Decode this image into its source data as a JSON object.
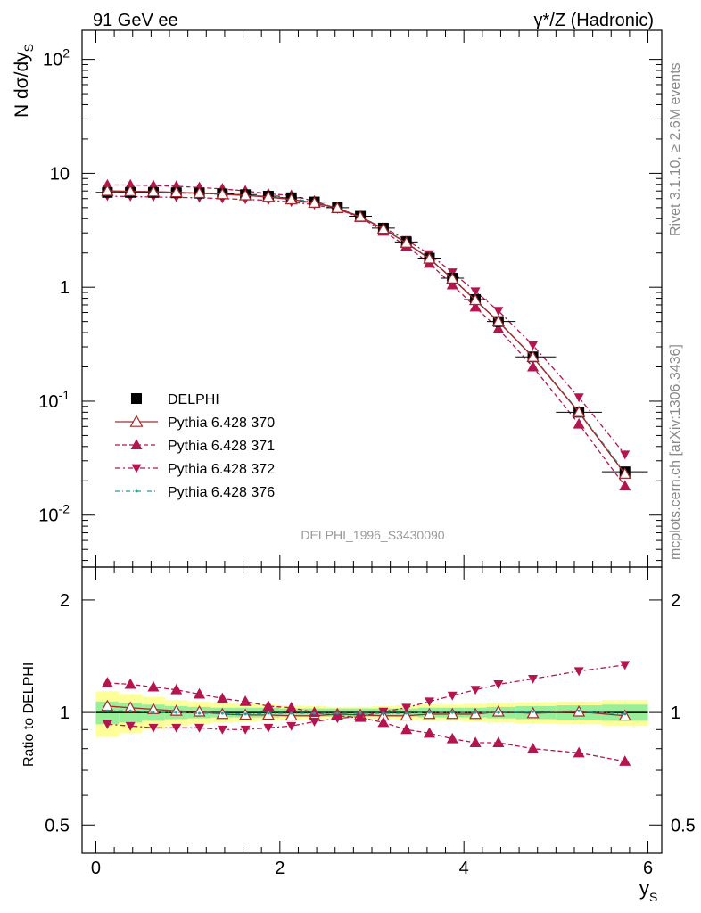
{
  "header": {
    "left_title": "91 GeV ee",
    "right_title": "γ*/Z (Hadronic)"
  },
  "side_labels": {
    "rivet": "Rivet 3.1.10, ≥ 2.6M events",
    "mcplots": "mcplots.cern.ch [arXiv:1306.3436]"
  },
  "watermark": "DELPHI_1996_S3430090",
  "axes": {
    "ylabel_top_main": "N dσ/dy",
    "ylabel_top_sub": "S",
    "ylabel_bottom": "Ratio to DELPHI",
    "xlabel_main": "y",
    "xlabel_sub": "S",
    "x_ticks": [
      "0",
      "2",
      "4",
      "6"
    ],
    "y_top_ticks": [
      {
        "base": "10",
        "exp": "-2"
      },
      {
        "base": "10",
        "exp": "-1"
      },
      {
        "base": "1",
        "exp": ""
      },
      {
        "base": "10",
        "exp": ""
      },
      {
        "base": "10",
        "exp": "2"
      }
    ],
    "y_bottom_ticks": [
      "0.5",
      "1",
      "2"
    ]
  },
  "legend": {
    "entries": [
      "DELPHI",
      "Pythia 6.428 370",
      "Pythia 6.428 371",
      "Pythia 6.428 372",
      "Pythia 6.428 376"
    ]
  },
  "colors": {
    "data": "#000000",
    "p370": "#a52a2a",
    "p371": "#b5154f",
    "p372": "#b5154f",
    "p376": "#1aa0a0",
    "band_inner": "#99ee99",
    "band_outer": "#ffff99"
  },
  "chart_data": {
    "type": "line",
    "x": [
      0.125,
      0.375,
      0.625,
      0.875,
      1.125,
      1.375,
      1.625,
      1.875,
      2.125,
      2.375,
      2.625,
      2.875,
      3.125,
      3.375,
      3.625,
      3.875,
      4.125,
      4.375,
      4.75,
      5.25,
      5.75
    ],
    "xlim": [
      -0.15,
      6.15
    ],
    "top": {
      "ylim": [
        0.0035,
        180
      ],
      "yscale": "log",
      "series": [
        {
          "name": "DELPHI",
          "values": [
            6.8,
            6.8,
            6.8,
            6.75,
            6.7,
            6.6,
            6.5,
            6.3,
            6.1,
            5.6,
            5.0,
            4.2,
            3.3,
            2.5,
            1.8,
            1.2,
            0.78,
            0.5,
            0.245,
            0.08,
            0.024
          ]
        },
        {
          "name": "Pythia 6.428 370",
          "values": [
            7.0,
            6.95,
            6.9,
            6.8,
            6.7,
            6.55,
            6.4,
            6.2,
            5.9,
            5.5,
            4.95,
            4.15,
            3.25,
            2.45,
            1.78,
            1.19,
            0.77,
            0.5,
            0.244,
            0.08,
            0.023
          ]
        },
        {
          "name": "Pythia 6.428 371",
          "values": [
            7.9,
            7.9,
            7.8,
            7.7,
            7.5,
            7.3,
            7.0,
            6.6,
            6.4,
            5.7,
            4.9,
            4.1,
            3.1,
            2.3,
            1.62,
            1.05,
            0.67,
            0.43,
            0.2,
            0.063,
            0.018
          ]
        },
        {
          "name": "Pythia 6.428 372",
          "values": [
            6.3,
            6.25,
            6.2,
            6.15,
            6.1,
            6.0,
            5.9,
            5.8,
            5.6,
            5.3,
            4.85,
            4.1,
            3.35,
            2.6,
            1.95,
            1.35,
            0.92,
            0.62,
            0.31,
            0.108,
            0.034
          ]
        },
        {
          "name": "Pythia 6.428 376",
          "values": [
            6.9,
            6.85,
            6.8,
            6.7,
            6.65,
            6.55,
            6.45,
            6.25,
            6.05,
            5.55,
            4.98,
            4.18,
            3.28,
            2.48,
            1.79,
            1.2,
            0.78,
            0.5,
            0.246,
            0.081,
            0.0238
          ]
        }
      ]
    },
    "ratio": {
      "ylim": [
        0.42,
        2.45
      ],
      "yscale": "log",
      "band_inner_halfwidth": [
        0.07,
        0.06,
        0.05,
        0.04,
        0.035,
        0.03,
        0.03,
        0.03,
        0.025,
        0.025,
        0.025,
        0.025,
        0.025,
        0.025,
        0.03,
        0.03,
        0.03,
        0.035,
        0.04,
        0.045,
        0.05
      ],
      "band_outer_halfwidth": [
        0.14,
        0.12,
        0.1,
        0.08,
        0.07,
        0.06,
        0.055,
        0.05,
        0.045,
        0.04,
        0.035,
        0.035,
        0.04,
        0.045,
        0.05,
        0.05,
        0.055,
        0.06,
        0.065,
        0.07,
        0.08
      ],
      "series": [
        {
          "name": "Pythia 6.428 370",
          "values": [
            1.04,
            1.03,
            1.02,
            1.01,
            1.005,
            0.99,
            0.985,
            0.985,
            0.98,
            0.98,
            0.99,
            0.985,
            0.98,
            0.98,
            0.99,
            0.99,
            0.99,
            1.005,
            0.995,
            1.005,
            0.98
          ]
        },
        {
          "name": "Pythia 6.428 371",
          "values": [
            1.2,
            1.19,
            1.17,
            1.15,
            1.12,
            1.09,
            1.07,
            1.04,
            1.03,
            1.0,
            0.98,
            0.97,
            0.94,
            0.9,
            0.88,
            0.85,
            0.83,
            0.83,
            0.8,
            0.78,
            0.74
          ]
        },
        {
          "name": "Pythia 6.428 372",
          "values": [
            0.93,
            0.92,
            0.91,
            0.91,
            0.91,
            0.9,
            0.9,
            0.91,
            0.92,
            0.945,
            0.965,
            0.975,
            1.005,
            1.03,
            1.07,
            1.11,
            1.15,
            1.19,
            1.23,
            1.29,
            1.34
          ]
        },
        {
          "name": "Pythia 6.428 376",
          "values": [
            1.01,
            1.01,
            1.0,
            1.0,
            0.995,
            0.995,
            0.99,
            0.995,
            0.995,
            0.995,
            0.995,
            0.995,
            0.995,
            0.995,
            1.0,
            1.0,
            1.0,
            1.0,
            1.005,
            1.01,
            0.99
          ]
        }
      ]
    },
    "legend_position": "middle-left"
  }
}
